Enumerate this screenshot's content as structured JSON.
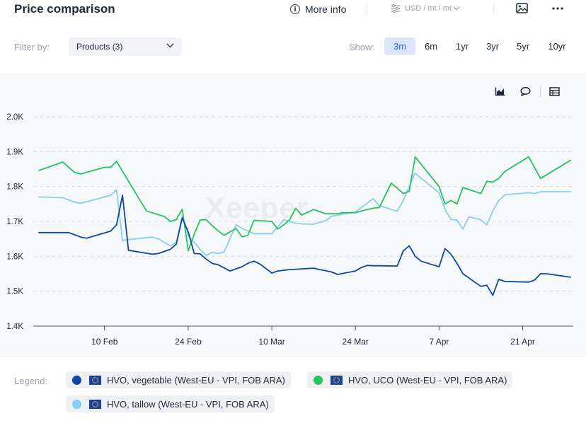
{
  "header": {
    "title": "Price comparison",
    "more_info_label": "More info",
    "unit_label": "USD / mt / mt",
    "icons": [
      "info-icon",
      "sliders-icon",
      "chevron-down-icon",
      "image-icon",
      "more-icon"
    ]
  },
  "filter": {
    "label": "Filter by:",
    "products_value": "Products (3)"
  },
  "show": {
    "label": "Show:",
    "ranges": [
      "3m",
      "6m",
      "1yr",
      "3yr",
      "5yr",
      "10yr"
    ],
    "active": "3m"
  },
  "toolbar_icons": [
    "area-chart-icon",
    "comment-icon",
    "table-icon"
  ],
  "watermark": "Xeeper",
  "legend": {
    "label": "Legend:",
    "items": [
      {
        "name": "HVO, vegetable (West-EU - VPI, FOB ARA)",
        "color": "#0d47a1"
      },
      {
        "name": "HVO, UCO (West-EU - VPI, FOB ARA)",
        "color": "#22c55e"
      },
      {
        "name": "HVO, tallow (West-EU - VPI, FOB ARA)",
        "color": "#87cef0"
      }
    ]
  },
  "chart_data": {
    "type": "line",
    "y_ticks": [
      "1.4K",
      "1.5K",
      "1.6K",
      "1.7K",
      "1.8K",
      "1.9K",
      "2.0K"
    ],
    "ylim": [
      1400,
      2000
    ],
    "x_ticks": [
      "10 Feb",
      "24 Feb",
      "10 Mar",
      "24 Mar",
      "7 Apr",
      "21 Apr"
    ],
    "xlim": [
      "2025-01-30",
      "2025-04-29"
    ],
    "grid": true,
    "series": [
      {
        "name": "HVO, vegetable (West-EU - VPI, FOB ARA)",
        "color": "#0d47a1",
        "x": [
          "2025-01-30",
          "2025-02-01",
          "2025-02-03",
          "2025-02-04",
          "2025-02-06",
          "2025-02-07",
          "2025-02-09",
          "2025-02-11",
          "2025-02-12",
          "2025-02-13",
          "2025-02-14",
          "2025-02-18",
          "2025-02-19",
          "2025-02-21",
          "2025-02-22",
          "2025-02-23",
          "2025-02-24",
          "2025-02-25",
          "2025-02-26",
          "2025-02-27",
          "2025-02-28",
          "2025-03-01",
          "2025-03-03",
          "2025-03-04",
          "2025-03-05",
          "2025-03-06",
          "2025-03-07",
          "2025-03-08",
          "2025-03-10",
          "2025-03-11",
          "2025-03-13",
          "2025-03-14",
          "2025-03-15",
          "2025-03-17",
          "2025-03-18",
          "2025-03-19",
          "2025-03-20",
          "2025-03-21",
          "2025-03-24",
          "2025-03-25",
          "2025-03-26",
          "2025-03-27",
          "2025-03-28",
          "2025-03-31",
          "2025-04-01",
          "2025-04-02",
          "2025-04-03",
          "2025-04-04",
          "2025-04-07",
          "2025-04-08",
          "2025-04-09",
          "2025-04-10",
          "2025-04-11",
          "2025-04-14",
          "2025-04-15",
          "2025-04-16",
          "2025-04-17",
          "2025-04-18",
          "2025-04-22",
          "2025-04-23",
          "2025-04-24",
          "2025-04-25",
          "2025-04-29"
        ],
        "y": [
          1668,
          1668,
          1668,
          1668,
          1655,
          1652,
          1662,
          1672,
          1690,
          1775,
          1617,
          1606,
          1608,
          1620,
          1635,
          1710,
          1670,
          1608,
          1607,
          1592,
          1580,
          1576,
          1558,
          1564,
          1570,
          1580,
          1586,
          1578,
          1552,
          1558,
          1562,
          1563,
          1564,
          1566,
          1562,
          1559,
          1555,
          1548,
          1558,
          1568,
          1574,
          1573,
          1573,
          1572,
          1615,
          1630,
          1600,
          1586,
          1570,
          1622,
          1606,
          1580,
          1550,
          1514,
          1517,
          1488,
          1534,
          1528,
          1526,
          1532,
          1550,
          1550,
          1540
        ]
      },
      {
        "name": "HVO, UCO (West-EU - VPI, FOB ARA)",
        "color": "#22c55e",
        "x": [
          "2025-01-30",
          "2025-02-03",
          "2025-02-05",
          "2025-02-06",
          "2025-02-10",
          "2025-02-11",
          "2025-02-12",
          "2025-02-14",
          "2025-02-17",
          "2025-02-20",
          "2025-02-21",
          "2025-02-22",
          "2025-02-23",
          "2025-02-24",
          "2025-02-25",
          "2025-02-26",
          "2025-02-27",
          "2025-02-28",
          "2025-03-01",
          "2025-03-02",
          "2025-03-04",
          "2025-03-05",
          "2025-03-06",
          "2025-03-07",
          "2025-03-10",
          "2025-03-11",
          "2025-03-12",
          "2025-03-13",
          "2025-03-14",
          "2025-03-15",
          "2025-03-17",
          "2025-03-19",
          "2025-03-21",
          "2025-03-22",
          "2025-03-24",
          "2025-03-25",
          "2025-03-27",
          "2025-03-28",
          "2025-03-30",
          "2025-04-01",
          "2025-04-02",
          "2025-04-03",
          "2025-04-07",
          "2025-04-08",
          "2025-04-09",
          "2025-04-10",
          "2025-04-11",
          "2025-04-14",
          "2025-04-15",
          "2025-04-16",
          "2025-04-17",
          "2025-04-18",
          "2025-04-22",
          "2025-04-24",
          "2025-04-29"
        ],
        "y": [
          1846,
          1870,
          1840,
          1836,
          1855,
          1855,
          1872,
          1815,
          1730,
          1714,
          1700,
          1705,
          1735,
          1616,
          1663,
          1704,
          1705,
          1688,
          1673,
          1660,
          1680,
          1656,
          1660,
          1703,
          1700,
          1678,
          1690,
          1705,
          1738,
          1718,
          1734,
          1722,
          1722,
          1725,
          1725,
          1730,
          1738,
          1740,
          1810,
          1780,
          1786,
          1885,
          1800,
          1750,
          1760,
          1750,
          1797,
          1780,
          1815,
          1813,
          1823,
          1843,
          1885,
          1823,
          1875
        ]
      },
      {
        "name": "HVO, tallow (West-EU - VPI, FOB ARA)",
        "color": "#87cef0",
        "x": [
          "2025-01-30",
          "2025-02-03",
          "2025-02-05",
          "2025-02-06",
          "2025-02-10",
          "2025-02-11",
          "2025-02-12",
          "2025-02-13",
          "2025-02-14",
          "2025-02-18",
          "2025-02-19",
          "2025-02-21",
          "2025-02-22",
          "2025-02-23",
          "2025-02-24",
          "2025-02-25",
          "2025-02-26",
          "2025-02-27",
          "2025-02-28",
          "2025-03-01",
          "2025-03-02",
          "2025-03-04",
          "2025-03-05",
          "2025-03-07",
          "2025-03-10",
          "2025-03-11",
          "2025-03-12",
          "2025-03-14",
          "2025-03-15",
          "2025-03-17",
          "2025-03-19",
          "2025-03-20",
          "2025-03-21",
          "2025-03-24",
          "2025-03-25",
          "2025-03-27",
          "2025-03-28",
          "2025-03-31",
          "2025-04-01",
          "2025-04-02",
          "2025-04-03",
          "2025-04-07",
          "2025-04-08",
          "2025-04-09",
          "2025-04-10",
          "2025-04-11",
          "2025-04-12",
          "2025-04-14",
          "2025-04-15",
          "2025-04-16",
          "2025-04-17",
          "2025-04-18",
          "2025-04-22",
          "2025-04-23",
          "2025-04-24",
          "2025-04-29"
        ],
        "y": [
          1770,
          1768,
          1755,
          1752,
          1770,
          1775,
          1790,
          1645,
          1648,
          1655,
          1650,
          1630,
          1640,
          1715,
          1658,
          1640,
          1620,
          1602,
          1612,
          1608,
          1612,
          1690,
          1680,
          1665,
          1665,
          1685,
          1705,
          1695,
          1693,
          1692,
          1702,
          1715,
          1718,
          1727,
          1740,
          1765,
          1745,
          1729,
          1760,
          1800,
          1838,
          1782,
          1735,
          1705,
          1704,
          1678,
          1713,
          1705,
          1690,
          1730,
          1760,
          1776,
          1782,
          1780,
          1785,
          1785
        ]
      }
    ]
  }
}
